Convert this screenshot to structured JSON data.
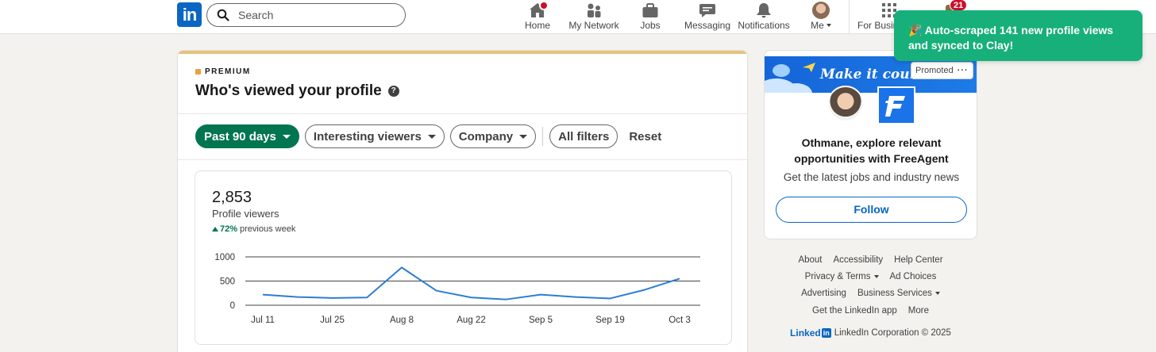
{
  "nav": {
    "logo_text": "in",
    "search_placeholder": "Search",
    "items": [
      {
        "label": "Home"
      },
      {
        "label": "My Network"
      },
      {
        "label": "Jobs"
      },
      {
        "label": "Messaging"
      },
      {
        "label": "Notifications"
      },
      {
        "label": "Me"
      },
      {
        "label": "For Business"
      }
    ],
    "premium_badge": "21"
  },
  "toast": {
    "text": "🎉 Auto-scraped 141 new profile views and synced to Clay!"
  },
  "main": {
    "premium_label": "PREMIUM",
    "title": "Who's viewed your profile",
    "filters": {
      "period": "Past 90 days",
      "viewers": "Interesting viewers",
      "company": "Company",
      "all": "All filters",
      "reset": "Reset"
    },
    "stats": {
      "count": "2,853",
      "label": "Profile viewers",
      "trend_pct": "72%",
      "trend_text": "previous week"
    }
  },
  "chart_data": {
    "type": "line",
    "x": [
      "Jul 11",
      "Jul 18",
      "Jul 25",
      "Aug 1",
      "Aug 8",
      "Aug 15",
      "Aug 22",
      "Aug 29",
      "Sep 5",
      "Sep 12",
      "Sep 19",
      "Sep 26",
      "Oct 3"
    ],
    "categories_labeled": [
      "Jul 11",
      "Jul 25",
      "Aug 8",
      "Aug 22",
      "Sep 5",
      "Sep 19",
      "Oct 3"
    ],
    "series": [
      {
        "values": [
          220,
          170,
          150,
          160,
          780,
          300,
          160,
          120,
          220,
          170,
          140,
          320,
          550
        ]
      }
    ],
    "y_ticks": [
      "1000",
      "500",
      "0"
    ],
    "ylim": [
      0,
      1000
    ],
    "grid": true,
    "line_color": "#2d7dd2"
  },
  "ad": {
    "banner_text": "Make it count",
    "promoted": "Promoted",
    "headline": "Othmane, explore relevant opportunities with FreeAgent",
    "sub": "Get the latest jobs and industry news",
    "follow": "Follow"
  },
  "footer": {
    "row1": [
      "About",
      "Accessibility",
      "Help Center"
    ],
    "row2": [
      "Privacy & Terms",
      "Ad Choices"
    ],
    "row3": [
      "Advertising",
      "Business Services"
    ],
    "row4": [
      "Get the LinkedIn app",
      "More"
    ],
    "brand": "Linked",
    "brand_in": "in",
    "copyright": "LinkedIn Corporation © 2025"
  }
}
